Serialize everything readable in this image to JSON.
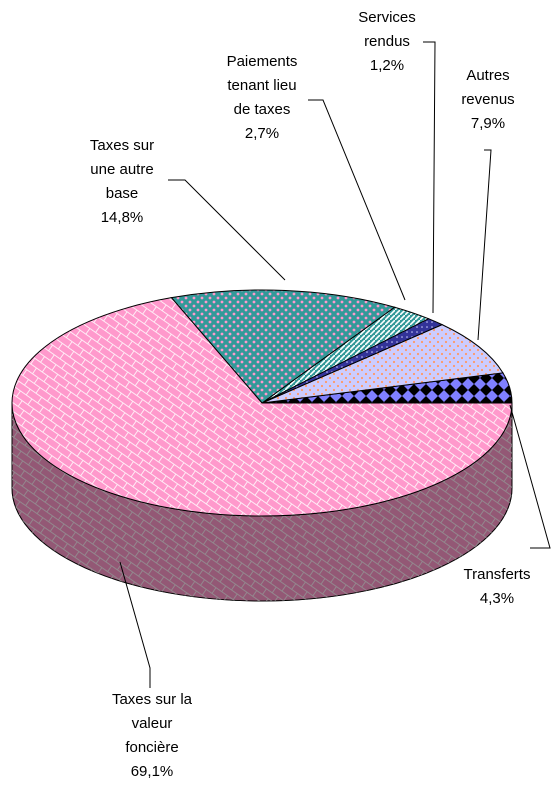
{
  "chart_data": {
    "type": "pie",
    "categories": [
      "Transferts",
      "Autres revenus",
      "Services rendus",
      "Paiements tenant lieu de taxes",
      "Taxes sur une autre base",
      "Taxes sur la valeur foncière"
    ],
    "values": [
      4.3,
      7.9,
      1.2,
      2.7,
      14.8,
      69.1
    ],
    "value_labels": [
      "4,3%",
      "7,9%",
      "1,2%",
      "2,7%",
      "14,8%",
      "69,1%"
    ],
    "colors": [
      "#8080ff",
      "#ccccff",
      "#333399",
      "#339999",
      "#339999",
      "#ff99cc"
    ]
  }
}
